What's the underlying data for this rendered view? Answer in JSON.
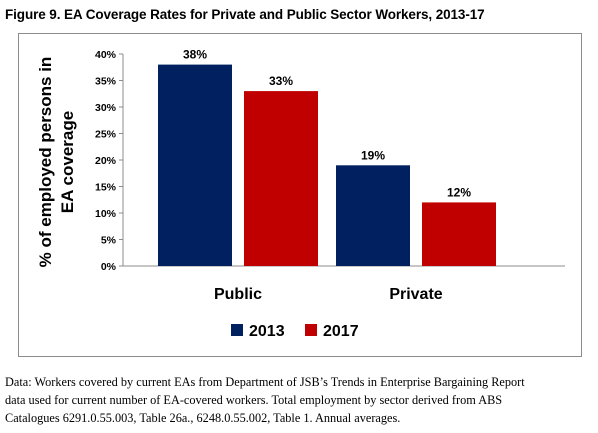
{
  "figure": {
    "title": "Figure 9. EA Coverage Rates for Private and Public Sector Workers, 2013-17"
  },
  "caption": {
    "line1": "Data: Workers covered by current EAs from Department of JSB’s Trends in Enterprise Bargaining Report",
    "line2": "data used for current number of EA-covered workers. Total employment by sector derived from ABS",
    "line3": "Catalogues 6291.0.55.003, Table 26a., 6248.0.55.002, Table 1. Annual averages."
  },
  "chart_data": {
    "type": "bar",
    "title": "",
    "xlabel": "",
    "ylabel": "% of employed persons in EA coverage",
    "ylabel_lines": [
      "% of employed persons in",
      "EA coverage"
    ],
    "categories": [
      "Public",
      "Private"
    ],
    "series": [
      {
        "name": "2013",
        "values": [
          38,
          19
        ],
        "labels": [
          "38%",
          "19%"
        ],
        "color": "#002060"
      },
      {
        "name": "2017",
        "values": [
          33,
          12
        ],
        "labels": [
          "33%",
          "12%"
        ],
        "color": "#c00000"
      }
    ],
    "ylim": [
      0,
      40
    ],
    "yticks": [
      0,
      5,
      10,
      15,
      20,
      25,
      30,
      35,
      40
    ],
    "ytick_labels": [
      "0%",
      "5%",
      "10%",
      "15%",
      "20%",
      "25%",
      "30%",
      "35%",
      "40%"
    ],
    "grid": false,
    "legend_position": "bottom"
  }
}
